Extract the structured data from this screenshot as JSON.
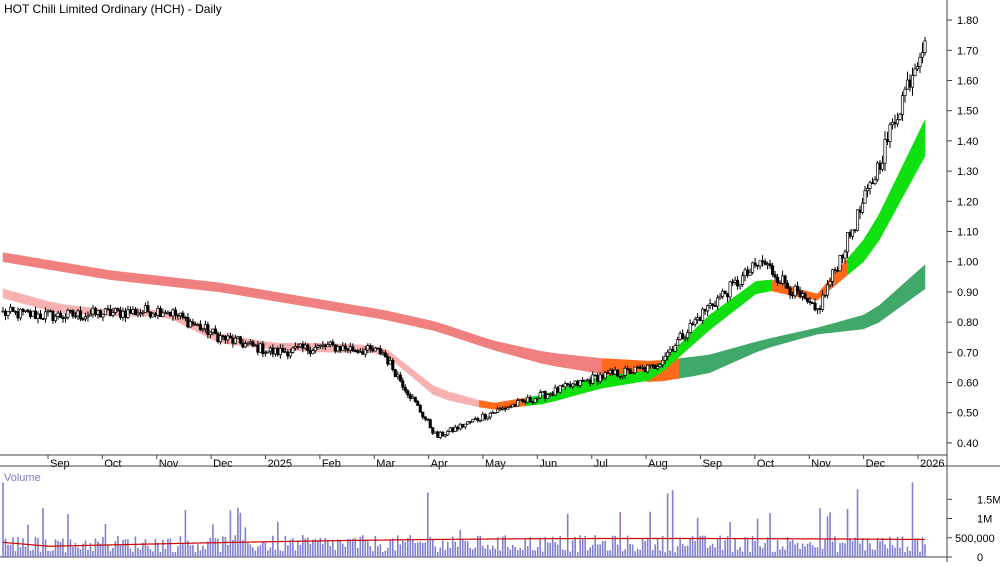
{
  "title": "HOT Chili Limited Ordinary (HCH) - Daily",
  "volume_label": "Volume",
  "colors": {
    "candle": "#000000",
    "band_long": "#f08080",
    "band_long_up": "#f07f7f",
    "band_long_transition": "#ff6a1a",
    "band_long_uptrend": "#40a869",
    "band_short_down": "#f7b1b1",
    "band_short_up": "#10e010",
    "band_short_transition": "#ff6a1a",
    "volume_bar": "#8080d0",
    "volume_ma": "#d00000",
    "axis": "#444444"
  },
  "chart_data": [
    {
      "type": "candlestick",
      "title": "HOT Chili Limited Ordinary (HCH) - Daily",
      "x_labels": [
        "Sep",
        "Oct",
        "Nov",
        "Dec",
        "2025",
        "Feb",
        "Mar",
        "Apr",
        "May",
        "Jun",
        "Jul",
        "Aug",
        "Sep",
        "Oct",
        "Nov",
        "Dec",
        "2026"
      ],
      "y_ticks": [
        "1.80",
        "1.70",
        "1.60",
        "1.50",
        "1.40",
        "1.30",
        "1.20",
        "1.10",
        "1.00",
        "0.90",
        "0.80",
        "0.70",
        "0.60",
        "0.50",
        "0.40"
      ],
      "ylim": [
        0.36,
        1.84
      ],
      "approx_close_by_month": [
        {
          "month": "Aug",
          "close": 0.83
        },
        {
          "month": "Sep",
          "close": 0.82
        },
        {
          "month": "Oct",
          "close": 0.83
        },
        {
          "month": "Nov",
          "close": 0.84
        },
        {
          "month": "Dec",
          "close": 0.75
        },
        {
          "month": "2025",
          "close": 0.7
        },
        {
          "month": "Feb",
          "close": 0.72
        },
        {
          "month": "Mar",
          "close": 0.7
        },
        {
          "month": "Apr",
          "close": 0.42
        },
        {
          "month": "May",
          "close": 0.5
        },
        {
          "month": "Jun",
          "close": 0.56
        },
        {
          "month": "Jul",
          "close": 0.62
        },
        {
          "month": "Aug",
          "close": 0.65
        },
        {
          "month": "Sep",
          "close": 0.85
        },
        {
          "month": "Oct",
          "close": 1.0
        },
        {
          "month": "Nov",
          "close": 0.83
        },
        {
          "month": "Dec",
          "close": 1.25
        },
        {
          "month": "2026",
          "close": 1.75
        }
      ],
      "long_band": {
        "upper": [
          1.03,
          1.0,
          0.97,
          0.95,
          0.93,
          0.9,
          0.87,
          0.84,
          0.8,
          0.74,
          0.7,
          0.68,
          0.67,
          0.69,
          0.74,
          0.78,
          0.83,
          0.99
        ],
        "lower": [
          1.0,
          0.97,
          0.94,
          0.92,
          0.9,
          0.87,
          0.84,
          0.81,
          0.77,
          0.71,
          0.66,
          0.63,
          0.6,
          0.63,
          0.71,
          0.76,
          0.78,
          0.91
        ]
      },
      "short_band": {
        "upper": [
          0.91,
          0.86,
          0.84,
          0.84,
          0.76,
          0.73,
          0.73,
          0.72,
          0.58,
          0.53,
          0.56,
          0.62,
          0.64,
          0.82,
          0.95,
          0.89,
          1.1,
          1.47
        ],
        "lower": [
          0.88,
          0.83,
          0.82,
          0.82,
          0.73,
          0.71,
          0.7,
          0.7,
          0.55,
          0.51,
          0.53,
          0.58,
          0.61,
          0.77,
          0.91,
          0.87,
          1.02,
          1.35
        ]
      }
    },
    {
      "type": "bar",
      "title": "Volume",
      "y_ticks": [
        "1.5M",
        "1M",
        "500,000",
        "0"
      ],
      "ylim": [
        0,
        2000000
      ],
      "approx_volume_ma": 420000,
      "notable_spikes": [
        {
          "month": "Aug",
          "volume": 1800000
        },
        {
          "month": "Aug",
          "volume": 1850000
        },
        {
          "month": "Dec",
          "volume": 2000000
        },
        {
          "month": "2026",
          "volume": 1700000
        }
      ]
    }
  ]
}
